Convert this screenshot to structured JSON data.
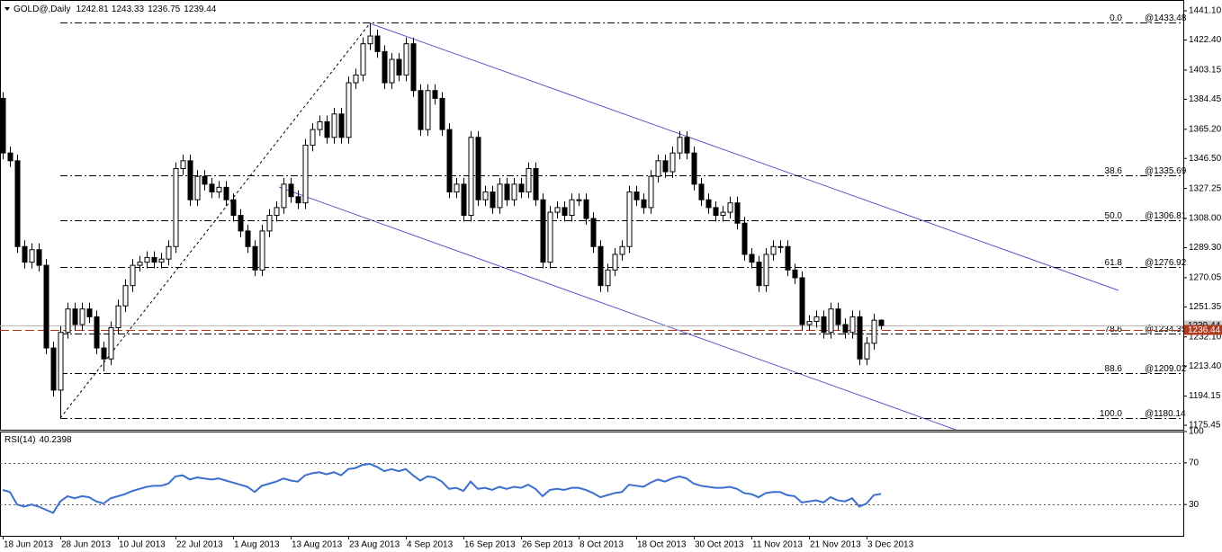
{
  "chart_data": [
    {
      "type": "candlestick",
      "title": "GOLD@,Daily",
      "categories": [
        "18 Jun 2013",
        null,
        null,
        null,
        null,
        null,
        null,
        null,
        "28 Jun 2013",
        null,
        null,
        null,
        null,
        null,
        null,
        null,
        "10 Jul 2013",
        null,
        null,
        null,
        null,
        null,
        null,
        null,
        "22 Jul 2013",
        null,
        null,
        null,
        null,
        null,
        null,
        null,
        "1 Aug 2013",
        null,
        null,
        null,
        null,
        null,
        null,
        null,
        "13 Aug 2013",
        null,
        null,
        null,
        null,
        null,
        null,
        null,
        "23 Aug 2013",
        null,
        null,
        null,
        null,
        null,
        null,
        null,
        "4 Sep 2013",
        null,
        null,
        null,
        null,
        null,
        null,
        null,
        "16 Sep 2013",
        null,
        null,
        null,
        null,
        null,
        null,
        null,
        "26 Sep 2013",
        null,
        null,
        null,
        null,
        null,
        null,
        null,
        "8 Oct 2013",
        null,
        null,
        null,
        null,
        null,
        null,
        null,
        "18 Oct 2013",
        null,
        null,
        null,
        null,
        null,
        null,
        null,
        "30 Oct 2013",
        null,
        null,
        null,
        null,
        null,
        null,
        null,
        "11 Nov 2013",
        null,
        null,
        null,
        null,
        null,
        null,
        null,
        "21 Nov 2013",
        null,
        null,
        null,
        null,
        null,
        null,
        null,
        "3 Dec 2013",
        null,
        null
      ],
      "open": [
        1385,
        1350,
        1345,
        1290,
        1280,
        1288,
        1278,
        1225,
        1198,
        1235,
        1250,
        1240,
        1250,
        1245,
        1225,
        1218,
        1238,
        1252,
        1265,
        1278,
        1280,
        1283,
        1280,
        1282,
        1290,
        1340,
        1345,
        1320,
        1335,
        1330,
        1325,
        1328,
        1320,
        1310,
        1300,
        1290,
        1275,
        1300,
        1310,
        1315,
        1330,
        1322,
        1318,
        1355,
        1365,
        1370,
        1360,
        1375,
        1360,
        1395,
        1400,
        1420,
        1425,
        1415,
        1395,
        1410,
        1400,
        1420,
        1390,
        1365,
        1390,
        1385,
        1365,
        1325,
        1330,
        1310,
        1360,
        1320,
        1325,
        1315,
        1330,
        1320,
        1330,
        1325,
        1340,
        1320,
        1280,
        1312,
        1315,
        1310,
        1320,
        1320,
        1308,
        1290,
        1265,
        1275,
        1285,
        1290,
        1325,
        1320,
        1315,
        1335,
        1345,
        1338,
        1350,
        1360,
        1350,
        1330,
        1320,
        1315,
        1310,
        1312,
        1318,
        1305,
        1285,
        1280,
        1265,
        1285,
        1290,
        1290,
        1275,
        1270,
        1240,
        1242,
        1245,
        1235,
        1250,
        1240,
        1235,
        1245,
        1218,
        1228,
        1242.81
      ],
      "high": [
        1389,
        1354,
        1349,
        1294,
        1292,
        1292,
        1282,
        1229,
        1239,
        1254,
        1254,
        1254,
        1254,
        1249,
        1229,
        1242,
        1256,
        1269,
        1282,
        1284,
        1287,
        1287,
        1286,
        1294,
        1344,
        1349,
        1349,
        1339,
        1339,
        1334,
        1332,
        1332,
        1324,
        1314,
        1304,
        1294,
        1304,
        1314,
        1319,
        1334,
        1334,
        1326,
        1359,
        1369,
        1374,
        1374,
        1379,
        1379,
        1399,
        1404,
        1424,
        1433.48,
        1429,
        1419,
        1414,
        1414,
        1424,
        1424,
        1394,
        1394,
        1394,
        1389,
        1369,
        1334,
        1334,
        1364,
        1364,
        1329,
        1329,
        1334,
        1334,
        1334,
        1334,
        1344,
        1344,
        1324,
        1316,
        1319,
        1319,
        1324,
        1324,
        1324,
        1312,
        1294,
        1279,
        1289,
        1294,
        1329,
        1329,
        1324,
        1339,
        1349,
        1349,
        1354,
        1364,
        1364,
        1354,
        1334,
        1324,
        1319,
        1316,
        1322,
        1322,
        1309,
        1289,
        1284,
        1289,
        1294,
        1294,
        1294,
        1279,
        1274,
        1246,
        1249,
        1249,
        1254,
        1254,
        1244,
        1249,
        1249,
        1232,
        1247,
        1243.33
      ],
      "low": [
        1346,
        1341,
        1286,
        1276,
        1276,
        1274,
        1221,
        1194,
        1180.14,
        1231,
        1236,
        1236,
        1241,
        1221,
        1210,
        1214,
        1234,
        1248,
        1261,
        1274,
        1276,
        1276,
        1276,
        1278,
        1286,
        1336,
        1316,
        1316,
        1326,
        1321,
        1321,
        1316,
        1306,
        1296,
        1286,
        1271,
        1271,
        1296,
        1306,
        1311,
        1318,
        1314,
        1314,
        1351,
        1361,
        1356,
        1356,
        1356,
        1356,
        1391,
        1396,
        1416,
        1411,
        1391,
        1391,
        1396,
        1396,
        1386,
        1361,
        1361,
        1381,
        1361,
        1321,
        1321,
        1306,
        1306,
        1316,
        1316,
        1311,
        1311,
        1316,
        1316,
        1321,
        1321,
        1316,
        1276,
        1276,
        1308,
        1306,
        1306,
        1316,
        1304,
        1286,
        1261,
        1261,
        1271,
        1281,
        1286,
        1316,
        1311,
        1311,
        1331,
        1334,
        1334,
        1346,
        1346,
        1326,
        1316,
        1311,
        1306,
        1306,
        1308,
        1301,
        1281,
        1276,
        1261,
        1261,
        1281,
        1286,
        1271,
        1266,
        1236,
        1236,
        1238,
        1231,
        1231,
        1236,
        1231,
        1231,
        1214,
        1214,
        1224,
        1236.75
      ],
      "close": [
        1350,
        1345,
        1290,
        1280,
        1288,
        1278,
        1225,
        1198,
        1235,
        1250,
        1240,
        1250,
        1245,
        1225,
        1218,
        1238,
        1252,
        1265,
        1278,
        1280,
        1283,
        1280,
        1282,
        1290,
        1340,
        1345,
        1320,
        1335,
        1330,
        1325,
        1328,
        1320,
        1310,
        1300,
        1290,
        1275,
        1300,
        1310,
        1315,
        1330,
        1322,
        1318,
        1355,
        1365,
        1370,
        1360,
        1375,
        1360,
        1395,
        1400,
        1420,
        1425,
        1415,
        1395,
        1410,
        1400,
        1420,
        1390,
        1365,
        1390,
        1385,
        1365,
        1325,
        1330,
        1310,
        1360,
        1320,
        1325,
        1315,
        1330,
        1320,
        1330,
        1325,
        1340,
        1320,
        1280,
        1312,
        1315,
        1310,
        1320,
        1320,
        1308,
        1290,
        1265,
        1275,
        1285,
        1290,
        1325,
        1320,
        1315,
        1335,
        1345,
        1338,
        1350,
        1360,
        1350,
        1330,
        1320,
        1315,
        1310,
        1312,
        1318,
        1305,
        1285,
        1280,
        1265,
        1285,
        1290,
        1290,
        1275,
        1270,
        1240,
        1242,
        1245,
        1235,
        1250,
        1240,
        1235,
        1245,
        1218,
        1228,
        1242.81,
        1239.44
      ],
      "up_color": "#ffffff",
      "down_color": "#000000",
      "ylim": [
        1172.6,
        1446.9
      ],
      "yticks": [
        {
          "value": 1441.1,
          "label": "1441.10"
        },
        {
          "value": 1422.4,
          "label": "1422.40"
        },
        {
          "value": 1403.15,
          "label": "1403.15"
        },
        {
          "value": 1384.45,
          "label": "1384.45"
        },
        {
          "value": 1365.2,
          "label": "1365.20"
        },
        {
          "value": 1346.5,
          "label": "1346.50"
        },
        {
          "value": 1327.25,
          "label": "1327.25"
        },
        {
          "value": 1308,
          "label": "1308.00"
        },
        {
          "value": 1289.3,
          "label": "1289.30"
        },
        {
          "value": 1270.05,
          "label": "1270.05"
        },
        {
          "value": 1251.35,
          "label": "1251.35"
        },
        {
          "value": 1232.1,
          "label": "1232.10"
        },
        {
          "value": 1213.4,
          "label": "1213.40"
        },
        {
          "value": 1194.15,
          "label": "1194.15"
        },
        {
          "value": 1175.45,
          "label": "1175.45"
        }
      ],
      "fib_levels": [
        {
          "ratio": "0.0",
          "price": 1433.48,
          "label": "@1433.48"
        },
        {
          "ratio": "38.6",
          "price": 1335.69,
          "label": "@1335.69"
        },
        {
          "ratio": "50.0",
          "price": 1306.81,
          "label": "@1306.81"
        },
        {
          "ratio": "61.8",
          "price": 1276.92,
          "label": "@1276.92"
        },
        {
          "ratio": "78.6",
          "price": 1234.35,
          "label": "@1234.35"
        },
        {
          "ratio": "88.6",
          "price": 1209.02,
          "label": "@1209.02"
        },
        {
          "ratio": "100.0",
          "price": 1180.14,
          "label": "@1180.14"
        }
      ],
      "ref_line": 1236.44,
      "ref_color": "#b0391e"
    },
    {
      "type": "line",
      "title": "RSI(14)",
      "color": "#3a6fd0",
      "values": [
        44,
        42,
        30,
        28,
        30,
        28,
        25,
        22,
        33,
        38,
        36,
        38,
        37,
        33,
        31,
        36,
        38,
        40,
        43,
        45,
        47,
        48,
        48,
        50,
        57,
        58,
        54,
        56,
        55,
        54,
        55,
        53,
        51,
        49,
        47,
        42,
        48,
        50,
        52,
        55,
        53,
        52,
        58,
        60,
        61,
        59,
        61,
        58,
        64,
        65,
        68,
        69,
        66,
        62,
        64,
        62,
        64,
        58,
        53,
        57,
        56,
        52,
        45,
        46,
        43,
        52,
        45,
        46,
        44,
        47,
        45,
        47,
        46,
        49,
        45,
        38,
        44,
        45,
        44,
        46,
        46,
        44,
        41,
        37,
        39,
        41,
        42,
        49,
        48,
        47,
        51,
        54,
        52,
        55,
        57,
        55,
        50,
        48,
        47,
        46,
        46,
        47,
        45,
        41,
        40,
        37,
        41,
        42,
        42,
        39,
        38,
        32,
        33,
        34,
        32,
        37,
        34,
        33,
        36,
        28,
        31,
        39,
        40.2398
      ],
      "ylim": [
        0,
        100
      ],
      "yticks": [
        100,
        70,
        30
      ],
      "levels": [
        70,
        30
      ]
    }
  ]
}
